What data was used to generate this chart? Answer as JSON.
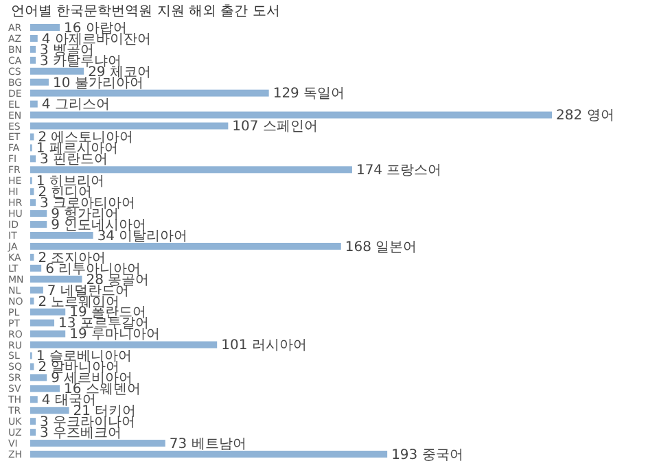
{
  "chart_data": {
    "type": "bar",
    "orientation": "horizontal",
    "title": "언어별 한국문학번역원 지원 해외 출간 도서",
    "categories": [
      "AR",
      "AZ",
      "BN",
      "CA",
      "CS",
      "BG",
      "DE",
      "EL",
      "EN",
      "ES",
      "ET",
      "FA",
      "FI",
      "FR",
      "HE",
      "HI",
      "HR",
      "HU",
      "ID",
      "IT",
      "JA",
      "KA",
      "LT",
      "MN",
      "NL",
      "NO",
      "PL",
      "PT",
      "RO",
      "RU",
      "SL",
      "SQ",
      "SR",
      "SV",
      "TH",
      "TR",
      "UK",
      "UZ",
      "VI",
      "ZH"
    ],
    "values": [
      16,
      4,
      3,
      3,
      29,
      10,
      129,
      4,
      282,
      107,
      2,
      1,
      3,
      174,
      1,
      2,
      3,
      9,
      9,
      34,
      168,
      2,
      6,
      28,
      7,
      2,
      19,
      13,
      19,
      101,
      1,
      2,
      9,
      16,
      4,
      21,
      3,
      3,
      73,
      193
    ],
    "value_labels": [
      "16 아랍어",
      "4 아제르바이잔어",
      "3 벵골어",
      "3 카탈루냐어",
      "29 체코어",
      "10 불가리아어",
      "129 독일어",
      "4 그리스어",
      "282 영어",
      "107 스페인어",
      "2 에스토니아어",
      "1 페르시아어",
      "3 핀란드어",
      "174 프랑스어",
      "1 히브리어",
      "2 힌디어",
      "3 크로아티아어",
      "9 헝가리어",
      "9 인도네시아어",
      "34 이탈리아어",
      "168 일본어",
      "2 조지아어",
      "6 리투아니아어",
      "28 몽골어",
      "7 네덜란드어",
      "2 노르웨이어",
      "19 폴란드어",
      "13 포르투갈어",
      "19 루마니아어",
      "101 러시아어",
      "1 슬로베니아어",
      "2 알바니아어",
      "9 세르비아어",
      "16 스웨덴어",
      "4 태국어",
      "21 터키어",
      "3 우크라이나어",
      "3 우즈베크어",
      "73 베트남어",
      "193 중국어"
    ],
    "color": "#8fb3d6"
  }
}
